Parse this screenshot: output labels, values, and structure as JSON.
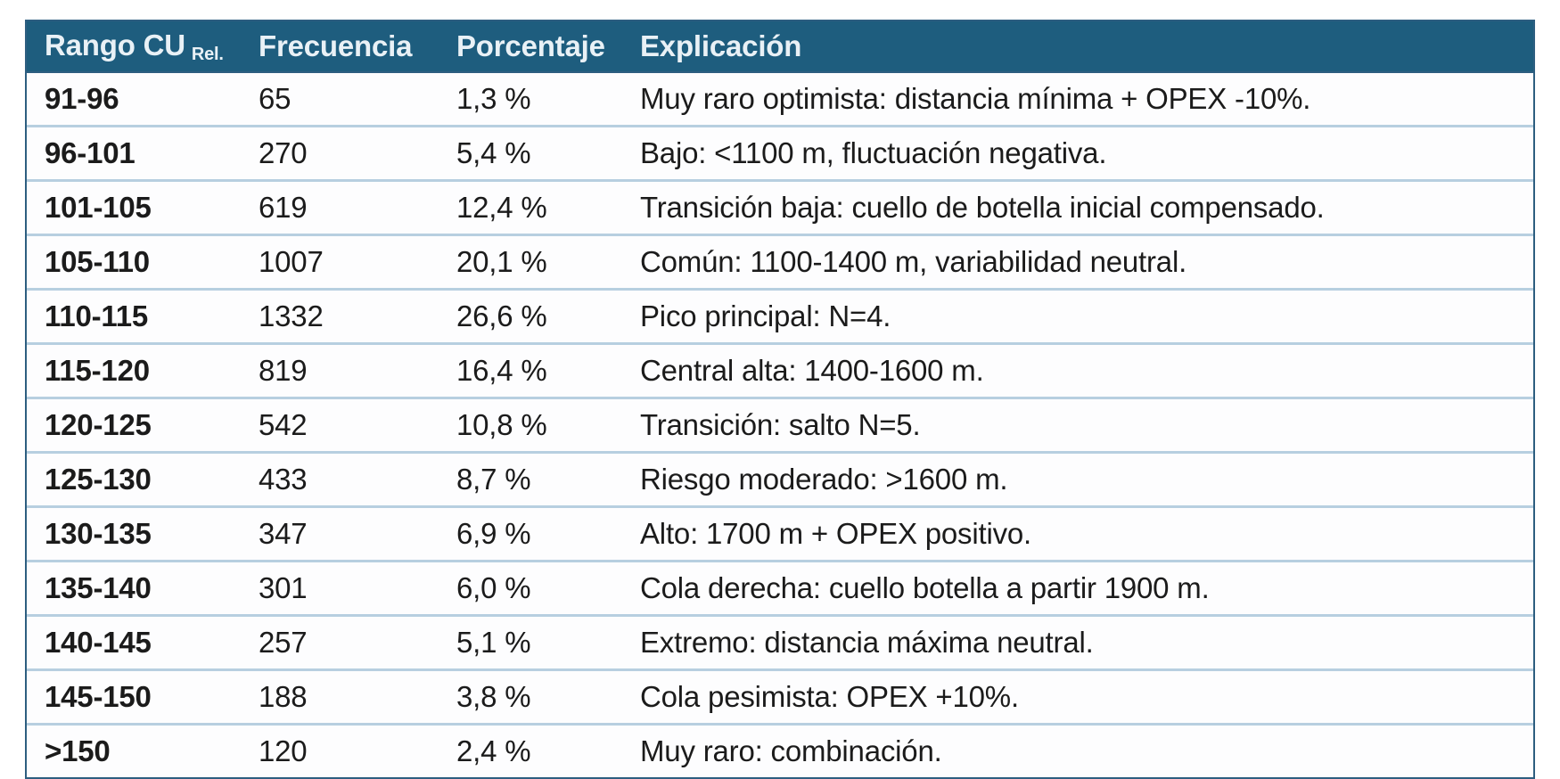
{
  "table": {
    "headers": [
      {
        "main": "Rango CU",
        "subscript": "Rel."
      },
      {
        "label": "Frecuencia"
      },
      {
        "label": "Porcentaje"
      },
      {
        "label": "Explicación"
      }
    ],
    "rows": [
      {
        "rango": "91-96",
        "frecuencia": "65",
        "porcentaje": "1,3 %",
        "explicacion": "Muy raro optimista: distancia mínima + OPEX -10%."
      },
      {
        "rango": "96-101",
        "frecuencia": "270",
        "porcentaje": "5,4 %",
        "explicacion": "Bajo: <1100 m, fluctuación negativa."
      },
      {
        "rango": "101-105",
        "frecuencia": "619",
        "porcentaje": "12,4 %",
        "explicacion": "Transición baja: cuello de botella inicial compensado."
      },
      {
        "rango": "105-110",
        "frecuencia": "1007",
        "porcentaje": "20,1 %",
        "explicacion": "Común: 1100-1400 m, variabilidad neutral."
      },
      {
        "rango": "110-115",
        "frecuencia": "1332",
        "porcentaje": "26,6 %",
        "explicacion": "Pico principal: N=4."
      },
      {
        "rango": "115-120",
        "frecuencia": "819",
        "porcentaje": "16,4 %",
        "explicacion": "Central alta: 1400-1600 m."
      },
      {
        "rango": "120-125",
        "frecuencia": "542",
        "porcentaje": "10,8 %",
        "explicacion": "Transición: salto N=5."
      },
      {
        "rango": "125-130",
        "frecuencia": "433",
        "porcentaje": "8,7 %",
        "explicacion": "Riesgo moderado: >1600 m."
      },
      {
        "rango": "130-135",
        "frecuencia": "347",
        "porcentaje": "6,9 %",
        "explicacion": "Alto: 1700 m + OPEX positivo."
      },
      {
        "rango": "135-140",
        "frecuencia": "301",
        "porcentaje": "6,0 %",
        "explicacion": "Cola derecha: cuello botella a partir 1900 m."
      },
      {
        "rango": "140-145",
        "frecuencia": "257",
        "porcentaje": "5,1 %",
        "explicacion": "Extremo: distancia máxima neutral."
      },
      {
        "rango": "145-150",
        "frecuencia": "188",
        "porcentaje": "3,8 %",
        "explicacion": "Cola pesimista: OPEX +10%."
      },
      {
        "rango": ">150",
        "frecuencia": "120",
        "porcentaje": "2,4 %",
        "explicacion": "Muy raro: combinación."
      }
    ]
  },
  "colors": {
    "header_bg": "#1e5d7e",
    "header_text": "#e9f1f6",
    "border_dark": "#2d5e80",
    "border_light": "#b7cfe0",
    "body_text": "#1b1b1b",
    "row_bg": "#fdfdfe"
  },
  "chart_data": {
    "type": "table",
    "title": "",
    "columns": [
      "Rango CU Rel.",
      "Frecuencia",
      "Porcentaje",
      "Explicación"
    ],
    "categories": [
      "91-96",
      "96-101",
      "101-105",
      "105-110",
      "110-115",
      "115-120",
      "120-125",
      "125-130",
      "130-135",
      "135-140",
      "140-145",
      "145-150",
      ">150"
    ],
    "series": [
      {
        "name": "Frecuencia",
        "values": [
          65,
          270,
          619,
          1007,
          1332,
          819,
          542,
          433,
          347,
          301,
          257,
          188,
          120
        ]
      },
      {
        "name": "Porcentaje",
        "values": [
          1.3,
          5.4,
          12.4,
          20.1,
          26.6,
          16.4,
          10.8,
          8.7,
          6.9,
          6.0,
          5.1,
          3.8,
          2.4
        ]
      }
    ],
    "annotations": [
      "Muy raro optimista: distancia mínima + OPEX -10%.",
      "Bajo: <1100 m, fluctuación negativa.",
      "Transición baja: cuello de botella inicial compensado.",
      "Común: 1100-1400 m, variabilidad neutral.",
      "Pico principal: N=4.",
      "Central alta: 1400-1600 m.",
      "Transición: salto N=5.",
      "Riesgo moderado: >1600 m.",
      "Alto: 1700 m + OPEX positivo.",
      "Cola derecha: cuello botella a partir 1900 m.",
      "Extremo: distancia máxima neutral.",
      "Cola pesimista: OPEX +10%.",
      "Muy raro: combinación."
    ],
    "legend_position": "none",
    "grid": "horizontal-row-lines"
  }
}
